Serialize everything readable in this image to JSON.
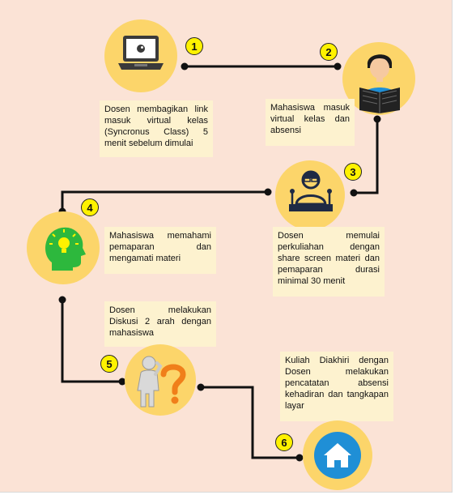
{
  "steps": [
    {
      "number": "1",
      "text": "Dosen membagikan link masuk virtual kelas (Syncronus Class) 5 menit sebelum dimulai",
      "icon": "laptop-icon"
    },
    {
      "number": "2",
      "text": "Mahasiswa masuk virtual kelas dan absensi",
      "icon": "student-reading-icon"
    },
    {
      "number": "3",
      "text": "Dosen memulai perkuliahan dengan share screen materi dan pemaparan durasi minimal 30 menit",
      "icon": "presenter-icon"
    },
    {
      "number": "4",
      "text": "Mahasiswa memahami pemaparan dan mengamati materi",
      "icon": "head-idea-icon"
    },
    {
      "number": "5",
      "text": "Dosen melakukan Diskusi 2 arah dengan mahasiswa",
      "icon": "question-person-icon"
    },
    {
      "number": "6",
      "text": "Kuliah Diakhiri dengan Dosen melakukan pencatatan absensi kehadiran dan tangkapan layar",
      "icon": "home-icon"
    }
  ],
  "colors": {
    "background": "#fbe3d6",
    "circle": "#fcd56a",
    "badge": "#fff200",
    "textbox": "#fdf2cf",
    "accent_blue": "#1f8fd6",
    "accent_green": "#2db83d"
  }
}
